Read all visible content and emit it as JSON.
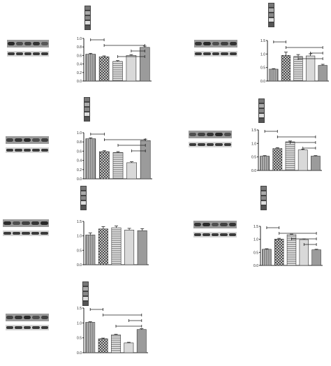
{
  "figure": {
    "patterns": [
      "vlines",
      "crosshatch",
      "hlines",
      "light",
      "dark"
    ],
    "bar_fill": "#9b9b9b",
    "axis_color": "#222222",
    "bracket_color": "#222222"
  },
  "chart_data": [
    {
      "type": "bar",
      "categories": [
        "",
        "",
        "",
        "",
        ""
      ],
      "values": [
        0.63,
        0.57,
        0.46,
        0.6,
        0.79
      ],
      "errors": [
        0.02,
        0.02,
        0.02,
        0.02,
        0.03
      ],
      "ylim": [
        0,
        1.0
      ],
      "yticks": [
        0.0,
        0.2,
        0.4,
        0.6,
        0.8,
        1.0
      ],
      "brackets": [
        [
          0,
          1
        ],
        [
          1,
          4
        ],
        [
          3,
          4
        ],
        [
          2,
          4
        ]
      ],
      "title": "",
      "xlabel": "",
      "ylabel": ""
    },
    {
      "type": "bar",
      "categories": [
        "",
        "",
        "",
        "",
        ""
      ],
      "values": [
        0.44,
        0.95,
        0.91,
        0.93,
        0.58
      ],
      "errors": [
        0.02,
        0.12,
        0.07,
        0.08,
        0.04
      ],
      "ylim": [
        0,
        1.5
      ],
      "yticks": [
        0.0,
        0.5,
        1.0,
        1.5
      ],
      "brackets": [
        [
          0,
          1
        ],
        [
          1,
          4
        ],
        [
          3,
          4
        ],
        [
          2,
          4
        ]
      ],
      "title": "",
      "xlabel": "",
      "ylabel": ""
    },
    {
      "type": "bar",
      "categories": [
        "",
        "",
        "",
        "",
        ""
      ],
      "values": [
        0.87,
        0.59,
        0.57,
        0.35,
        0.83
      ],
      "errors": [
        0.02,
        0.02,
        0.02,
        0.02,
        0.03
      ],
      "ylim": [
        0,
        1.0
      ],
      "yticks": [
        0.0,
        0.2,
        0.4,
        0.6,
        0.8,
        1.0
      ],
      "brackets": [
        [
          0,
          1
        ],
        [
          1,
          4
        ],
        [
          2,
          4
        ],
        [
          3,
          4
        ]
      ],
      "title": "",
      "xlabel": "",
      "ylabel": ""
    },
    {
      "type": "bar",
      "categories": [
        "",
        "",
        "",
        "",
        ""
      ],
      "values": [
        0.53,
        0.81,
        1.06,
        0.76,
        0.53
      ],
      "errors": [
        0.02,
        0.03,
        0.03,
        0.03,
        0.02
      ],
      "ylim": [
        0,
        1.5
      ],
      "yticks": [
        0.0,
        0.5,
        1.0,
        1.5
      ],
      "brackets": [
        [
          0,
          1
        ],
        [
          1,
          4
        ],
        [
          2,
          4
        ],
        [
          3,
          4
        ]
      ],
      "title": "",
      "xlabel": "",
      "ylabel": ""
    },
    {
      "type": "bar",
      "categories": [
        "",
        "",
        "",
        "",
        ""
      ],
      "values": [
        1.03,
        1.24,
        1.28,
        1.2,
        1.18
      ],
      "errors": [
        0.07,
        0.08,
        0.06,
        0.06,
        0.07
      ],
      "ylim": [
        0,
        1.5
      ],
      "yticks": [
        0.0,
        0.5,
        1.0,
        1.5
      ],
      "brackets": [],
      "title": "",
      "xlabel": "",
      "ylabel": ""
    },
    {
      "type": "bar",
      "categories": [
        "",
        "",
        "",
        "",
        ""
      ],
      "values": [
        0.62,
        1.01,
        1.18,
        0.99,
        0.6
      ],
      "errors": [
        0.02,
        0.03,
        0.02,
        0.03,
        0.02
      ],
      "ylim": [
        0,
        1.5
      ],
      "yticks": [
        0.0,
        0.5,
        1.0,
        1.5
      ],
      "brackets": [
        [
          0,
          1
        ],
        [
          1,
          4
        ],
        [
          2,
          4
        ],
        [
          3,
          4
        ]
      ],
      "title": "",
      "xlabel": "",
      "ylabel": ""
    },
    {
      "type": "bar",
      "categories": [
        "",
        "",
        "",
        "",
        ""
      ],
      "values": [
        1.02,
        0.47,
        0.6,
        0.33,
        0.78
      ],
      "errors": [
        0.02,
        0.02,
        0.02,
        0.02,
        0.03
      ],
      "ylim": [
        0,
        1.5
      ],
      "yticks": [
        0.0,
        0.5,
        1.0,
        1.5
      ],
      "brackets": [
        [
          0,
          1
        ],
        [
          1,
          4
        ],
        [
          3,
          4
        ],
        [
          2,
          4
        ]
      ],
      "title": "",
      "xlabel": "",
      "ylabel": ""
    }
  ]
}
